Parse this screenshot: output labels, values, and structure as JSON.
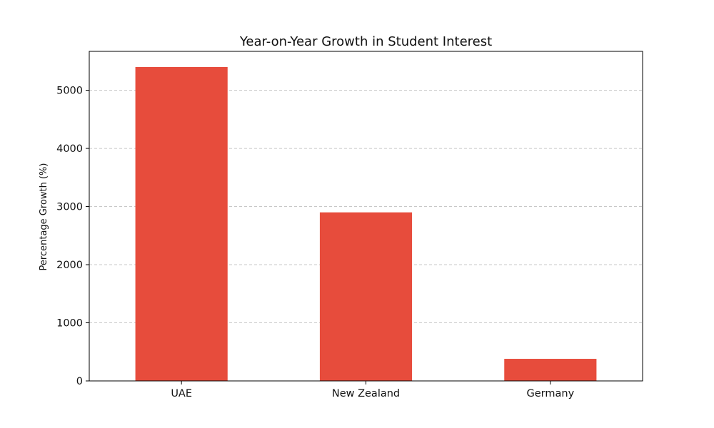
{
  "chart_data": {
    "type": "bar",
    "title": "Year-on-Year Growth in Student Interest",
    "xlabel": "",
    "ylabel": "Percentage Growth (%)",
    "categories": [
      "UAE",
      "New Zealand",
      "Germany"
    ],
    "values": [
      5400,
      2900,
      380
    ],
    "ylim": [
      0,
      5670
    ],
    "yticks": [
      0,
      1000,
      2000,
      3000,
      4000,
      5000
    ],
    "grid": {
      "y": true,
      "style": "dashed"
    },
    "legend": "none",
    "colors": {
      "bar": "#e74c3c",
      "grid": "#c8c8c8",
      "axis": "#000000"
    }
  }
}
